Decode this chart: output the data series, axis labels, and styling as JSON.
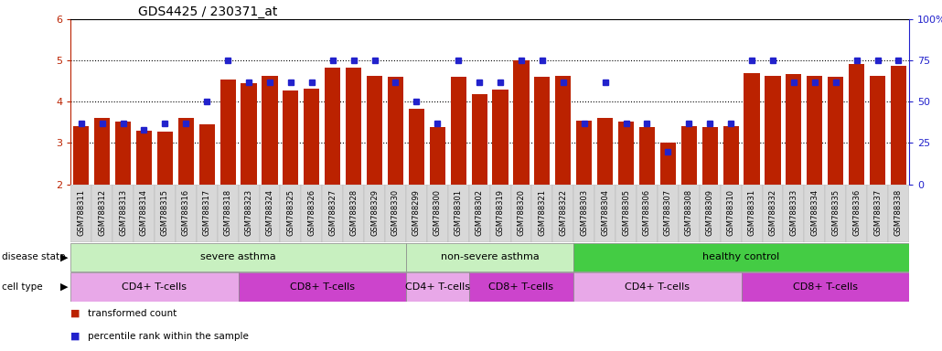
{
  "title": "GDS4425 / 230371_at",
  "samples": [
    "GSM788311",
    "GSM788312",
    "GSM788313",
    "GSM788314",
    "GSM788315",
    "GSM788316",
    "GSM788317",
    "GSM788318",
    "GSM788323",
    "GSM788324",
    "GSM788325",
    "GSM788326",
    "GSM788327",
    "GSM788328",
    "GSM788329",
    "GSM788330",
    "GSM788299",
    "GSM788300",
    "GSM788301",
    "GSM788302",
    "GSM788319",
    "GSM788320",
    "GSM788321",
    "GSM788322",
    "GSM788303",
    "GSM788304",
    "GSM788305",
    "GSM788306",
    "GSM788307",
    "GSM788308",
    "GSM788309",
    "GSM788310",
    "GSM788331",
    "GSM788332",
    "GSM788333",
    "GSM788334",
    "GSM788335",
    "GSM788336",
    "GSM788337",
    "GSM788338"
  ],
  "bar_values": [
    3.4,
    3.62,
    3.52,
    3.3,
    3.28,
    3.6,
    3.45,
    4.55,
    4.45,
    4.62,
    4.28,
    4.32,
    4.82,
    4.82,
    4.62,
    4.6,
    3.82,
    3.38,
    4.6,
    4.18,
    4.3,
    5.0,
    4.6,
    4.62,
    3.55,
    3.62,
    3.52,
    3.38,
    3.02,
    3.4,
    3.38,
    3.4,
    4.7,
    4.62,
    4.68,
    4.62,
    4.6,
    4.92,
    4.62,
    4.88
  ],
  "percentile_values": [
    37,
    37,
    37,
    33,
    37,
    37,
    50,
    75,
    62,
    62,
    62,
    62,
    75,
    75,
    75,
    62,
    50,
    37,
    75,
    62,
    62,
    75,
    75,
    62,
    37,
    62,
    37,
    37,
    20,
    37,
    37,
    37,
    75,
    75,
    62,
    62,
    62,
    75,
    75,
    75
  ],
  "disease_state_groups": [
    {
      "label": "severe asthma",
      "start": 0,
      "end": 15,
      "color": "#c8f0c0"
    },
    {
      "label": "non-severe asthma",
      "start": 16,
      "end": 23,
      "color": "#c8f0c0"
    },
    {
      "label": "healthy control",
      "start": 24,
      "end": 39,
      "color": "#44cc44"
    }
  ],
  "cell_type_groups": [
    {
      "label": "CD4+ T-cells",
      "start": 0,
      "end": 7,
      "color": "#e8a8e8"
    },
    {
      "label": "CD8+ T-cells",
      "start": 8,
      "end": 15,
      "color": "#cc44cc"
    },
    {
      "label": "CD4+ T-cells",
      "start": 16,
      "end": 18,
      "color": "#e8a8e8"
    },
    {
      "label": "CD8+ T-cells",
      "start": 19,
      "end": 23,
      "color": "#cc44cc"
    },
    {
      "label": "CD4+ T-cells",
      "start": 24,
      "end": 31,
      "color": "#e8a8e8"
    },
    {
      "label": "CD8+ T-cells",
      "start": 32,
      "end": 39,
      "color": "#cc44cc"
    }
  ],
  "bar_color": "#bb2200",
  "dot_color": "#2222cc",
  "ylim_left": [
    2,
    6
  ],
  "ylim_right": [
    0,
    100
  ],
  "yticks_left": [
    2,
    3,
    4,
    5,
    6
  ],
  "yticks_right": [
    0,
    25,
    50,
    75,
    100
  ],
  "bar_width": 0.75,
  "title_fontsize": 10,
  "sample_label_fontsize": 6,
  "annotation_fontsize": 8
}
